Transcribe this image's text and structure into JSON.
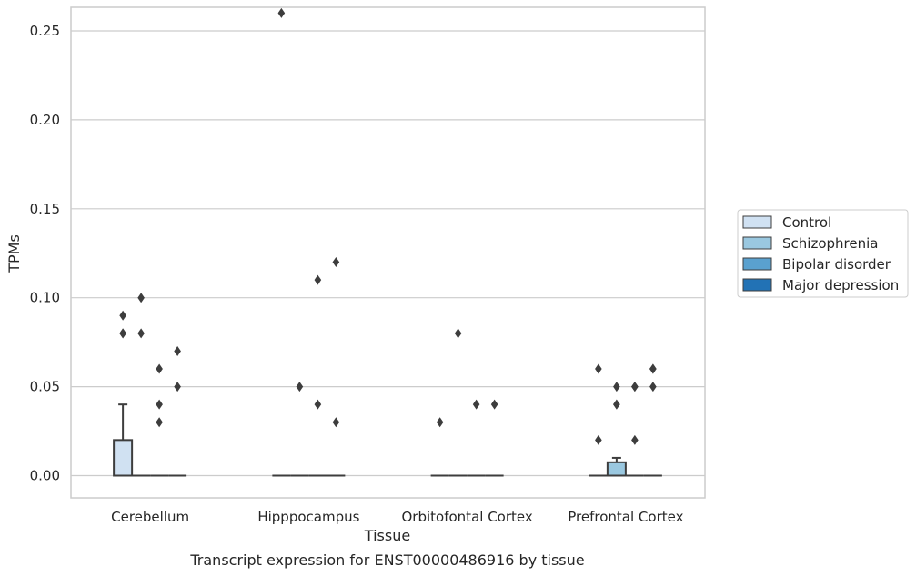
{
  "chart_data": {
    "type": "box",
    "title": "",
    "caption": "Transcript expression for ENST00000486916 by tissue",
    "xlabel": "Tissue",
    "ylabel": "TPMs",
    "ylim": [
      -0.013,
      0.274
    ],
    "yticks": [
      0.0,
      0.05,
      0.1,
      0.15,
      0.2,
      0.25
    ],
    "ytick_labels": [
      "0.00",
      "0.05",
      "0.10",
      "0.15",
      "0.20",
      "0.25"
    ],
    "grid": "horizontal",
    "legend_position": "right",
    "categories": [
      "Cerebellum",
      "Hipppocampus",
      "Orbitofontal Cortex",
      "Prefrontal Cortex"
    ],
    "series": [
      {
        "name": "Control",
        "color": "#d0e1f2",
        "boxes": [
          {
            "q1": 0.0,
            "median": 0.0,
            "q3": 0.02,
            "whisker_low": 0.0,
            "whisker_high": 0.04,
            "outliers": [
              0.08,
              0.08,
              0.09
            ]
          },
          {
            "q1": 0.0,
            "median": 0.0,
            "q3": 0.0,
            "whisker_low": 0.0,
            "whisker_high": 0.0,
            "outliers": [
              0.26
            ]
          },
          {
            "q1": 0.0,
            "median": 0.0,
            "q3": 0.0,
            "whisker_low": 0.0,
            "whisker_high": 0.0,
            "outliers": [
              0.03
            ]
          },
          {
            "q1": 0.0,
            "median": 0.0,
            "q3": 0.0,
            "whisker_low": 0.0,
            "whisker_high": 0.0,
            "outliers": [
              0.02,
              0.06
            ]
          }
        ]
      },
      {
        "name": "Schizophrenia",
        "color": "#9ac8e0",
        "boxes": [
          {
            "q1": 0.0,
            "median": 0.0,
            "q3": 0.0,
            "whisker_low": 0.0,
            "whisker_high": 0.0,
            "outliers": [
              0.08,
              0.1
            ]
          },
          {
            "q1": 0.0,
            "median": 0.0,
            "q3": 0.0,
            "whisker_low": 0.0,
            "whisker_high": 0.0,
            "outliers": [
              0.05
            ]
          },
          {
            "q1": 0.0,
            "median": 0.0,
            "q3": 0.0,
            "whisker_low": 0.0,
            "whisker_high": 0.0,
            "outliers": [
              0.08
            ]
          },
          {
            "q1": 0.0,
            "median": 0.0,
            "q3": 0.0075,
            "whisker_low": 0.0,
            "whisker_high": 0.01,
            "outliers": [
              0.04,
              0.04,
              0.05
            ]
          }
        ]
      },
      {
        "name": "Bipolar disorder",
        "color": "#5aa1cf",
        "boxes": [
          {
            "q1": 0.0,
            "median": 0.0,
            "q3": 0.0,
            "whisker_low": 0.0,
            "whisker_high": 0.0,
            "outliers": [
              0.03,
              0.04,
              0.06
            ]
          },
          {
            "q1": 0.0,
            "median": 0.0,
            "q3": 0.0,
            "whisker_low": 0.0,
            "whisker_high": 0.0,
            "outliers": [
              0.04,
              0.11
            ]
          },
          {
            "q1": 0.0,
            "median": 0.0,
            "q3": 0.0,
            "whisker_low": 0.0,
            "whisker_high": 0.0,
            "outliers": [
              0.04
            ]
          },
          {
            "q1": 0.0,
            "median": 0.0,
            "q3": 0.0,
            "whisker_low": 0.0,
            "whisker_high": 0.0,
            "outliers": [
              0.02,
              0.05,
              0.05
            ]
          }
        ]
      },
      {
        "name": "Major depression",
        "color": "#2272b5",
        "boxes": [
          {
            "q1": 0.0,
            "median": 0.0,
            "q3": 0.0,
            "whisker_low": 0.0,
            "whisker_high": 0.0,
            "outliers": [
              0.05,
              0.07
            ]
          },
          {
            "q1": 0.0,
            "median": 0.0,
            "q3": 0.0,
            "whisker_low": 0.0,
            "whisker_high": 0.0,
            "outliers": [
              0.03,
              0.12
            ]
          },
          {
            "q1": 0.0,
            "median": 0.0,
            "q3": 0.0,
            "whisker_low": 0.0,
            "whisker_high": 0.0,
            "outliers": [
              0.04
            ]
          },
          {
            "q1": 0.0,
            "median": 0.0,
            "q3": 0.0,
            "whisker_low": 0.0,
            "whisker_high": 0.0,
            "outliers": [
              0.05,
              0.06,
              0.06
            ]
          }
        ]
      }
    ]
  }
}
